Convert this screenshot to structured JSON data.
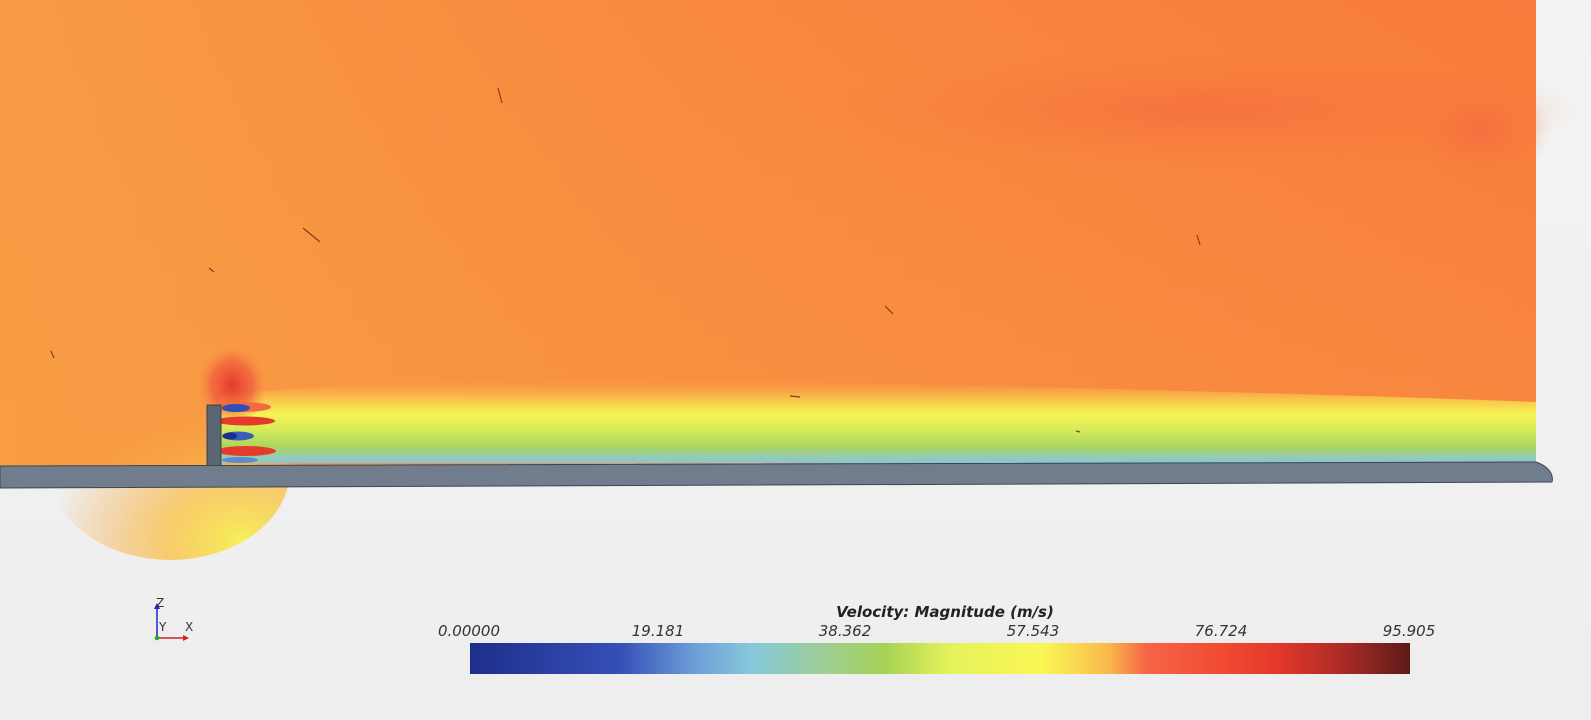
{
  "colorbar": {
    "title": "Velocity: Magnitude (m/s)",
    "ticks": [
      "0.00000",
      "19.181",
      "38.362",
      "57.543",
      "76.724",
      "95.905"
    ],
    "min": 0.0,
    "max": 95.905,
    "colormap_colors": [
      "#1e2e8a",
      "#3550b8",
      "#86c8dc",
      "#a6d155",
      "#fbf654",
      "#f76446",
      "#e3382a",
      "#5c1a17"
    ]
  },
  "axes_triad": {
    "z_label": "Z",
    "y_label": "Y",
    "x_label": "X",
    "colors": {
      "z": "#2222cc",
      "y": "#22aa22",
      "x": "#cc2222"
    }
  },
  "scene": {
    "background_color": "#efefef",
    "ground_color": "#717c8c",
    "field_color": "#f8923e"
  }
}
